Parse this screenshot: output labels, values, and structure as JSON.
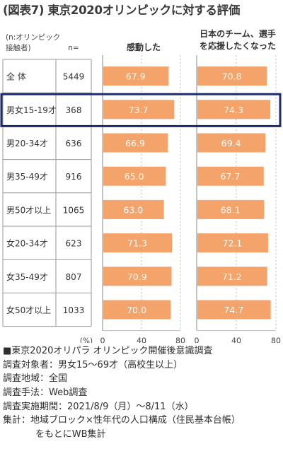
{
  "title": "(図表7) 東京2020オリンピックに対する評価",
  "table_header": {
    "group_label_line1": "(n:オリンピック",
    "group_label_line2": "接触者)",
    "n_label": "n="
  },
  "chart_data": {
    "type": "bar",
    "categories": [
      "全 体",
      "男女15-19才",
      "男20-34才",
      "男35-49才",
      "男50才以上",
      "女20-34才",
      "女35-49才",
      "女50才以上"
    ],
    "n": [
      5449,
      368,
      636,
      916,
      1065,
      623,
      807,
      1033
    ],
    "highlighted_category": "男女15-19才",
    "series": [
      {
        "name": "感動した",
        "values": [
          67.9,
          73.7,
          66.9,
          65.0,
          63.0,
          71.3,
          70.9,
          70.0
        ]
      },
      {
        "name": "日本のチーム、選手を応援したくなった",
        "name_lines": [
          "日本のチーム、選手",
          "を応援したくなった"
        ],
        "values": [
          70.8,
          74.3,
          69.4,
          67.7,
          68.1,
          72.1,
          71.2,
          74.7
        ]
      }
    ],
    "xlim": [
      0,
      80
    ],
    "x_ticks": [
      0,
      40,
      80
    ],
    "unit_label": "(%)",
    "bar_color": "#f4a36b",
    "label_color": "#ffffff",
    "highlight_color": "#1f2a6b"
  },
  "notes": {
    "heading": "■東京2020オリパラ オリンピック開催後意識調査",
    "target": "調査対象者：男女15～69才（高校生以上）",
    "area": "調査地域：全国",
    "method": "調査手法：Web調査",
    "period": "調査実施期間：2021/8/9（月）～8/11（水）",
    "tabulation_line1": "集計：地域ブロック×性年代の人口構成（住民基本台帳）",
    "tabulation_line2": "をもとにWB集計"
  }
}
